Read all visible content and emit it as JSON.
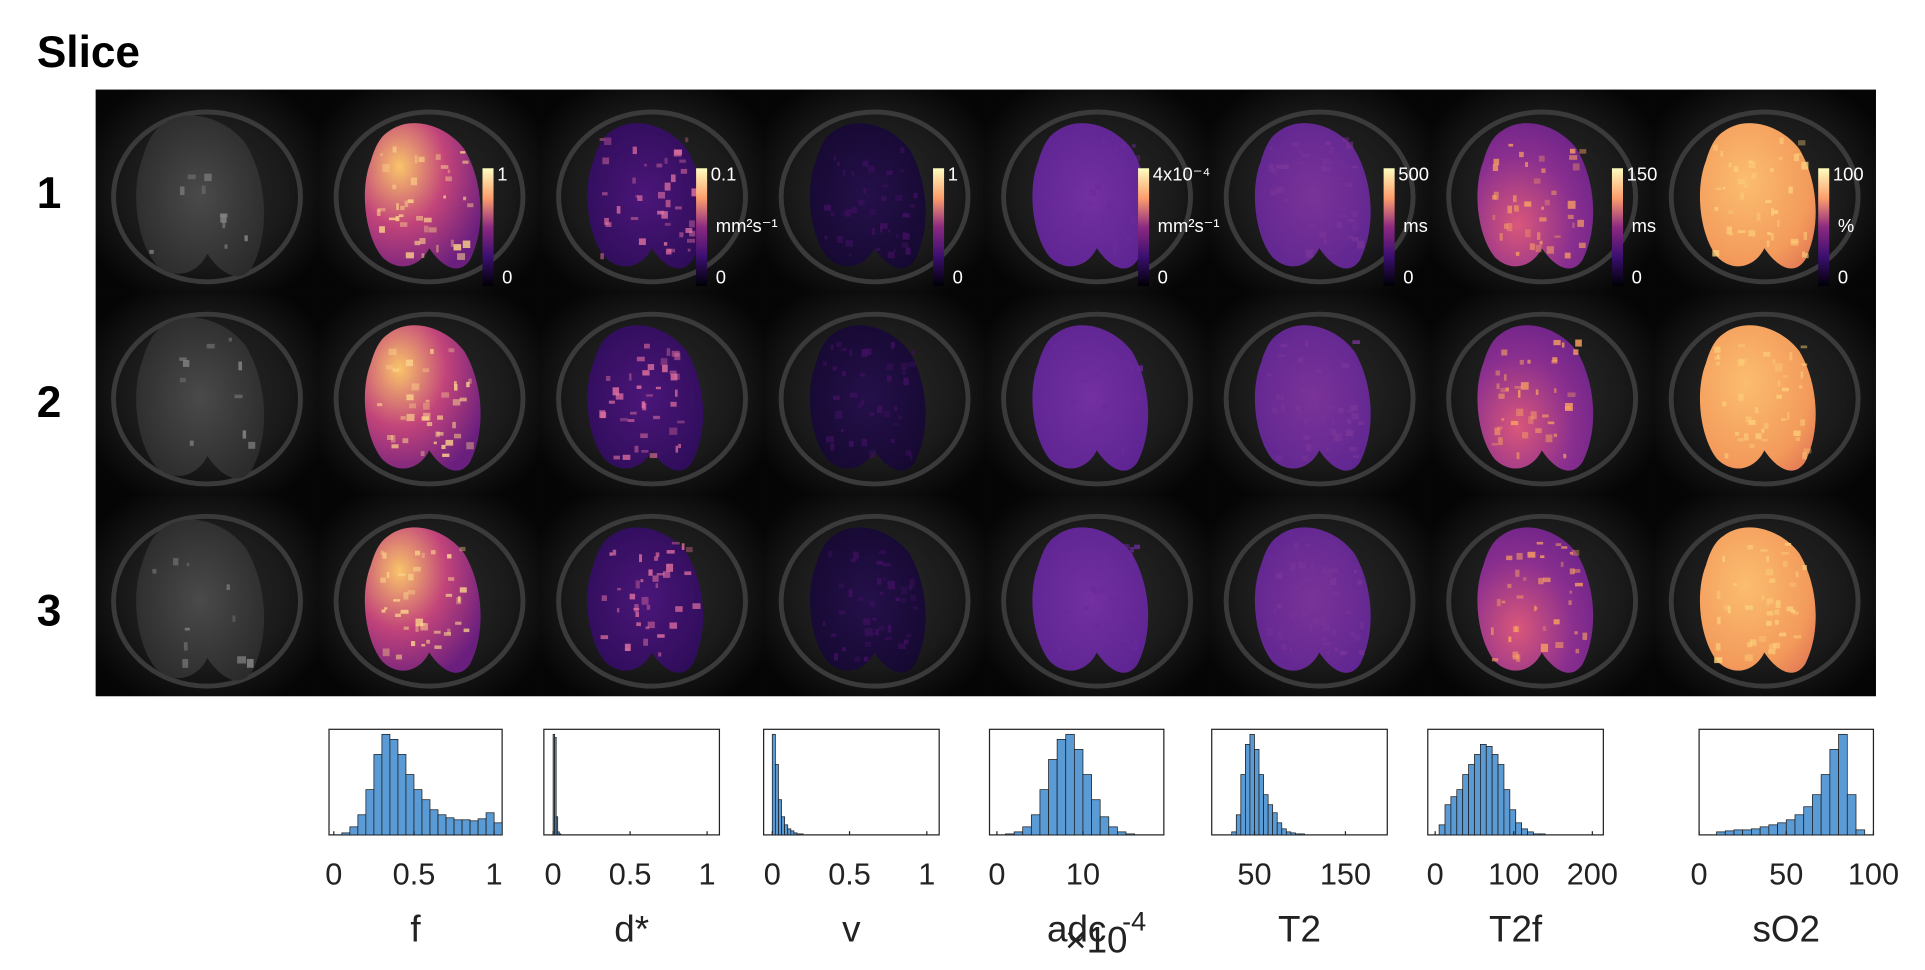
{
  "title": "Slice",
  "rows": [
    "1",
    "2",
    "3"
  ],
  "colorbars": [
    {
      "max": "1",
      "min": "0"
    },
    {
      "max": "0.1",
      "unit": "mm²s⁻¹",
      "min": "0"
    },
    {
      "max": "1",
      "min": "0"
    },
    {
      "max": "4x10⁻⁴",
      "unit": "mm²s⁻¹",
      "min": "0"
    },
    {
      "max": "500",
      "unit": "ms",
      "min": "0"
    },
    {
      "max": "150",
      "unit": "ms",
      "min": "0"
    },
    {
      "max": "100",
      "unit": "%",
      "min": "0"
    }
  ],
  "histograms": [
    {
      "type": "histogram",
      "xlabel": "f",
      "color": "#5b9bd5",
      "xlim": [
        -0.03,
        1.05
      ],
      "ylim": [
        0,
        105
      ],
      "xticks": [
        0,
        0.5,
        1
      ],
      "bins": [
        0.05,
        0.1,
        0.15,
        0.2,
        0.25,
        0.3,
        0.35,
        0.4,
        0.45,
        0.5,
        0.55,
        0.6,
        0.65,
        0.7,
        0.75,
        0.8,
        0.85,
        0.9,
        0.95,
        1.0,
        1.05
      ],
      "counts": [
        2,
        8,
        20,
        45,
        80,
        100,
        95,
        80,
        60,
        45,
        35,
        25,
        20,
        17,
        15,
        15,
        14,
        16,
        22,
        12
      ]
    },
    {
      "type": "histogram",
      "xlabel": "d*",
      "color": "#5b9bd5",
      "xlim": [
        -0.06,
        1.08
      ],
      "ylim": [
        0,
        105
      ],
      "xticks": [
        0,
        0.5,
        1
      ],
      "bins": [
        0,
        0.01,
        0.02,
        0.03,
        0.04,
        0.05,
        0.06
      ],
      "counts": [
        100,
        97,
        18,
        3,
        1,
        0
      ]
    },
    {
      "type": "histogram",
      "xlabel": "v",
      "color": "#5b9bd5",
      "xlim": [
        -0.056,
        1.08
      ],
      "ylim": [
        0,
        105
      ],
      "xticks": [
        0,
        0.5,
        1
      ],
      "bins": [
        0,
        0.02,
        0.04,
        0.06,
        0.08,
        0.1,
        0.12,
        0.14,
        0.16,
        0.18,
        0.2
      ],
      "counts": [
        100,
        70,
        35,
        18,
        10,
        6,
        4,
        2,
        1,
        1
      ]
    },
    {
      "type": "histogram",
      "xlabel": "adc",
      "offset_text": "×10",
      "offset_exponent": "-4",
      "color": "#5b9bd5",
      "xlim": [
        -0.86,
        19.4
      ],
      "ylim": [
        0,
        105
      ],
      "xticks": [
        0,
        10
      ],
      "bins": [
        1,
        2,
        3,
        4,
        5,
        6,
        7,
        8,
        9,
        10,
        11,
        12,
        13,
        14,
        15,
        16
      ],
      "counts": [
        1,
        3,
        8,
        20,
        45,
        75,
        95,
        100,
        85,
        60,
        35,
        18,
        8,
        3,
        1
      ]
    },
    {
      "type": "histogram",
      "xlabel": "T2",
      "color": "#5b9bd5",
      "xlim": [
        3,
        196
      ],
      "ylim": [
        0,
        105
      ],
      "xticks": [
        50,
        150
      ],
      "bins": [
        25,
        30,
        35,
        40,
        45,
        50,
        55,
        60,
        65,
        70,
        75,
        80,
        85,
        90,
        95,
        100,
        105,
        110,
        115
      ],
      "counts": [
        3,
        20,
        60,
        90,
        100,
        85,
        60,
        40,
        30,
        22,
        12,
        6,
        3,
        2,
        1,
        1,
        0,
        0
      ]
    },
    {
      "type": "histogram",
      "xlabel": "T2f",
      "color": "#5b9bd5",
      "xlim": [
        -9.4,
        214
      ],
      "ylim": [
        0,
        105
      ],
      "xticks": [
        0,
        100,
        200
      ],
      "bins": [
        5,
        12.5,
        20,
        27.5,
        35,
        42.5,
        50,
        57.5,
        65,
        72.5,
        80,
        87.5,
        95,
        102.5,
        110,
        117.5,
        125,
        132.5,
        140
      ],
      "counts": [
        10,
        30,
        38,
        45,
        60,
        70,
        80,
        90,
        88,
        80,
        70,
        45,
        25,
        12,
        6,
        3,
        1,
        1
      ]
    },
    {
      "type": "histogram",
      "xlabel": "sO2",
      "color": "#5b9bd5",
      "xlim": [
        0,
        100
      ],
      "ylim": [
        0,
        105
      ],
      "xticks": [
        0,
        50,
        100
      ],
      "bins": [
        10,
        15,
        20,
        25,
        30,
        35,
        40,
        45,
        50,
        55,
        60,
        65,
        70,
        75,
        80,
        85,
        90,
        95
      ],
      "counts": [
        3,
        4,
        5,
        5,
        6,
        8,
        10,
        12,
        15,
        20,
        28,
        40,
        60,
        85,
        100,
        40,
        5
      ]
    }
  ]
}
